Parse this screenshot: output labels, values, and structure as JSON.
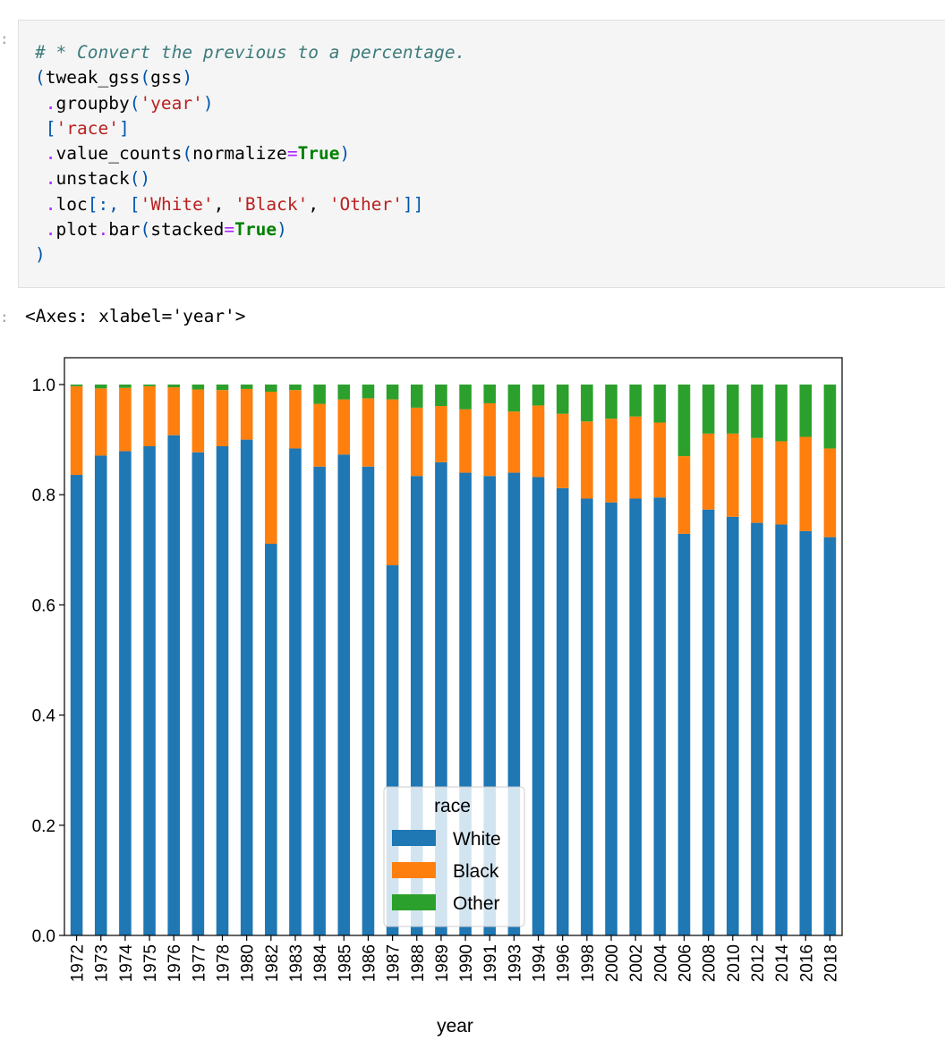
{
  "cell": {
    "code_lines": [
      "# * Convert the previous to a percentage.",
      "(tweak_gss(gss)",
      " .groupby('year')",
      " ['race']",
      " .value_counts(normalize=True)",
      " .unstack()",
      " .loc[:, ['White', 'Black', 'Other']]",
      " .plot.bar(stacked=True)",
      ")"
    ],
    "output_text": "<Axes: xlabel='year'>"
  },
  "chart_data": {
    "type": "bar",
    "stacked": true,
    "title": "",
    "xlabel": "year",
    "ylabel": "",
    "ylim": [
      0,
      1.0
    ],
    "yticks": [
      "0.0",
      "0.2",
      "0.4",
      "0.6",
      "0.8",
      "1.0"
    ],
    "grid": false,
    "legend": {
      "title": "race",
      "placement": "bottom-center"
    },
    "categories": [
      "1972",
      "1973",
      "1974",
      "1975",
      "1976",
      "1977",
      "1978",
      "1980",
      "1982",
      "1983",
      "1984",
      "1985",
      "1986",
      "1987",
      "1988",
      "1989",
      "1990",
      "1991",
      "1993",
      "1994",
      "1996",
      "1998",
      "2000",
      "2002",
      "2004",
      "2006",
      "2008",
      "2010",
      "2012",
      "2014",
      "2016",
      "2018"
    ],
    "series": [
      {
        "name": "White",
        "color": "#1f77b4",
        "values": [
          0.836,
          0.871,
          0.879,
          0.888,
          0.908,
          0.877,
          0.888,
          0.9,
          0.711,
          0.884,
          0.851,
          0.873,
          0.851,
          0.672,
          0.834,
          0.859,
          0.84,
          0.834,
          0.84,
          0.832,
          0.812,
          0.793,
          0.786,
          0.793,
          0.795,
          0.729,
          0.773,
          0.76,
          0.749,
          0.746,
          0.734,
          0.723
        ]
      },
      {
        "name": "Black",
        "color": "#ff7f0e",
        "values": [
          0.161,
          0.122,
          0.115,
          0.109,
          0.087,
          0.114,
          0.102,
          0.092,
          0.276,
          0.106,
          0.114,
          0.1,
          0.124,
          0.301,
          0.124,
          0.102,
          0.115,
          0.132,
          0.111,
          0.13,
          0.135,
          0.14,
          0.152,
          0.149,
          0.136,
          0.141,
          0.138,
          0.151,
          0.154,
          0.151,
          0.171,
          0.161
        ]
      },
      {
        "name": "Other",
        "color": "#2ca02c",
        "values": [
          0.003,
          0.007,
          0.006,
          0.003,
          0.005,
          0.009,
          0.01,
          0.008,
          0.013,
          0.01,
          0.035,
          0.027,
          0.025,
          0.027,
          0.042,
          0.039,
          0.045,
          0.034,
          0.049,
          0.038,
          0.053,
          0.067,
          0.062,
          0.058,
          0.069,
          0.13,
          0.089,
          0.089,
          0.097,
          0.103,
          0.095,
          0.116
        ]
      }
    ]
  }
}
